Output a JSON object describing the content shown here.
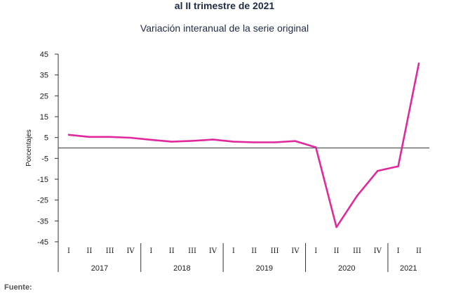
{
  "header": {
    "title": "al II trimestre de 2021",
    "subtitle": "Variación interanual de la serie original"
  },
  "footer": {
    "source_label": "Fuente:"
  },
  "colors": {
    "series": "#e0299c",
    "axis": "#333333",
    "zero_line": "#555555",
    "text": "#1a1a1a"
  },
  "chart_data": {
    "type": "line",
    "title": "al II trimestre de 2021",
    "subtitle": "Variación interanual de la serie original",
    "xlabel": "",
    "ylabel": "Porcentajes",
    "ylim": [
      -45,
      45
    ],
    "yticks": [
      45,
      35,
      25,
      15,
      5,
      -5,
      -15,
      -25,
      -35,
      -45
    ],
    "grid": false,
    "x": [
      "I",
      "II",
      "III",
      "IV",
      "I",
      "II",
      "III",
      "IV",
      "I",
      "II",
      "III",
      "IV",
      "I",
      "II",
      "III",
      "IV",
      "I",
      "II"
    ],
    "years": [
      {
        "label": "2017",
        "quarters": 4
      },
      {
        "label": "2018",
        "quarters": 4
      },
      {
        "label": "2019",
        "quarters": 4
      },
      {
        "label": "2020",
        "quarters": 4
      },
      {
        "label": "2021",
        "quarters": 2
      }
    ],
    "series": [
      {
        "values": [
          6.3,
          5.3,
          5.3,
          4.9,
          3.9,
          3.0,
          3.4,
          4.0,
          3.0,
          2.7,
          2.7,
          3.3,
          0.3,
          -38.0,
          -23.0,
          -11.0,
          -8.8,
          40.5
        ]
      }
    ]
  }
}
